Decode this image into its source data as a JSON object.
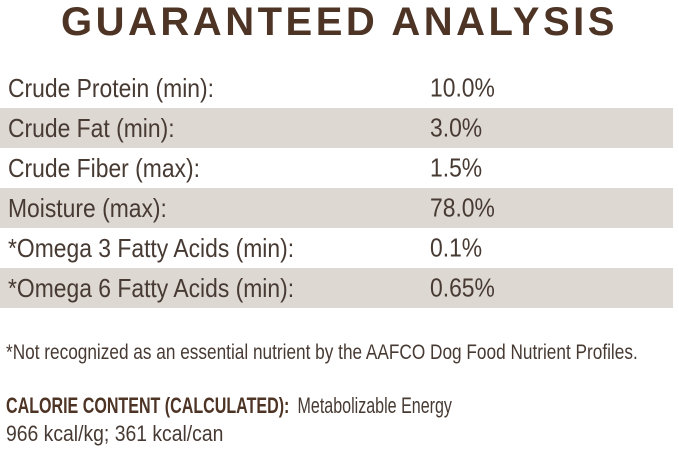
{
  "title": "GUARANTEED ANALYSIS",
  "table": {
    "rows": [
      {
        "label": "Crude Protein (min):",
        "value": "10.0%"
      },
      {
        "label": "Crude Fat (min):",
        "value": "3.0%"
      },
      {
        "label": "Crude Fiber (max):",
        "value": "1.5%"
      },
      {
        "label": "Moisture (max):",
        "value": "78.0%"
      },
      {
        "label": "*Omega 3 Fatty Acids (min):",
        "value": "0.1%"
      },
      {
        "label": "*Omega 6 Fatty Acids (min):",
        "value": "0.65%"
      }
    ]
  },
  "footnote": "*Not recognized as an essential nutrient by the AAFCO Dog Food Nutrient Profiles.",
  "calorie": {
    "heading": "CALORIE CONTENT (CALCULATED):",
    "subheading": "Metabolizable Energy",
    "values": "966 kcal/kg; 361 kcal/can"
  },
  "colors": {
    "title_brown": "#4d3425",
    "body_text": "#473a33",
    "row_stripe": "#ded8d2"
  }
}
